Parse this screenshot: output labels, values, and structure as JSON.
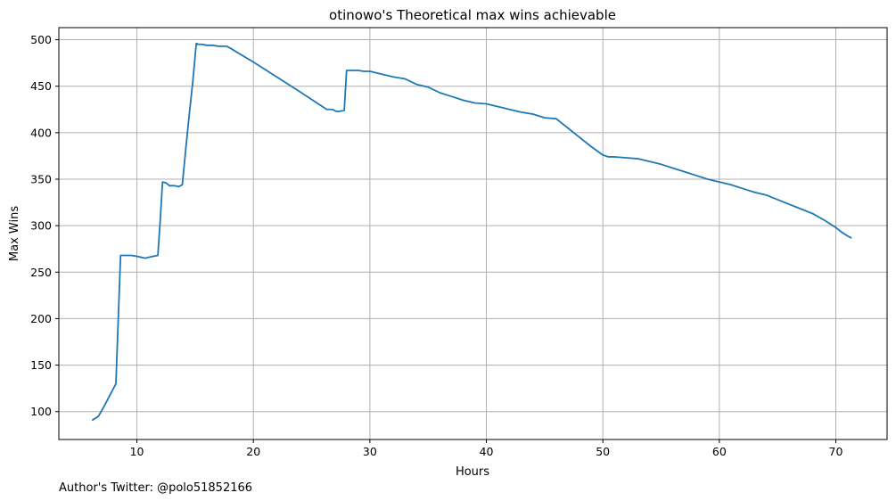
{
  "chart_data": {
    "type": "line",
    "title": "otinowo's Theoretical max wins achievable",
    "xlabel": "Hours",
    "ylabel": "Max Wins",
    "footnote": "Author's Twitter: @polo51852166",
    "xlim": [
      3.3,
      74.4
    ],
    "ylim": [
      70,
      513
    ],
    "xticks": [
      10,
      20,
      30,
      40,
      50,
      60,
      70
    ],
    "yticks": [
      100,
      150,
      200,
      250,
      300,
      350,
      400,
      450,
      500
    ],
    "grid": true,
    "legend": "none",
    "colors": {
      "line": "#1f77b4",
      "grid": "#b0b0b0",
      "axes": "#000000"
    },
    "series": [
      {
        "x": [
          6.2,
          6.7,
          7.2,
          7.7,
          8.2,
          8.6,
          9.0,
          9.5,
          10.0,
          10.7,
          11.4,
          11.8,
          12.0,
          12.2,
          12.5,
          12.8,
          13.2,
          13.6,
          13.9,
          14.2,
          14.5,
          14.8,
          15.1,
          15.3,
          15.6,
          16.0,
          16.5,
          17.0,
          17.7,
          18.0,
          20.0,
          22.0,
          24.0,
          26.3,
          26.8,
          27.1,
          27.4,
          27.8,
          28.0,
          28.5,
          29.0,
          29.5,
          30.0,
          31.0,
          32.0,
          33.0,
          34.0,
          35.0,
          36.0,
          37.0,
          38.0,
          39.0,
          40.0,
          41.0,
          42.0,
          43.0,
          44.0,
          45.0,
          46.0,
          47.0,
          48.0,
          49.0,
          50.0,
          50.5,
          51.0,
          52.0,
          53.0,
          54.0,
          55.0,
          56.0,
          57.0,
          58.0,
          59.0,
          60.0,
          61.0,
          62.0,
          63.0,
          64.0,
          65.0,
          66.0,
          67.0,
          68.0,
          69.0,
          70.0,
          70.5,
          71.0,
          71.3
        ],
        "y": [
          91,
          95,
          106,
          118,
          130,
          268,
          268,
          268,
          267,
          265,
          267,
          268,
          305,
          347,
          346,
          343,
          343,
          342,
          344,
          383,
          420,
          455,
          496,
          495,
          495,
          494,
          494,
          493,
          493,
          491,
          476,
          460,
          444,
          425,
          425,
          423,
          423,
          424,
          467,
          467,
          467,
          466,
          466,
          463,
          460,
          458,
          452,
          449,
          443,
          439,
          435,
          432,
          431,
          428,
          425,
          422,
          420,
          416,
          415,
          405,
          395,
          385,
          376,
          374,
          374,
          373,
          372,
          369,
          366,
          362,
          358,
          354,
          350,
          347,
          344,
          340,
          336,
          333,
          328,
          323,
          318,
          313,
          306,
          298,
          293,
          289,
          287
        ]
      }
    ]
  }
}
